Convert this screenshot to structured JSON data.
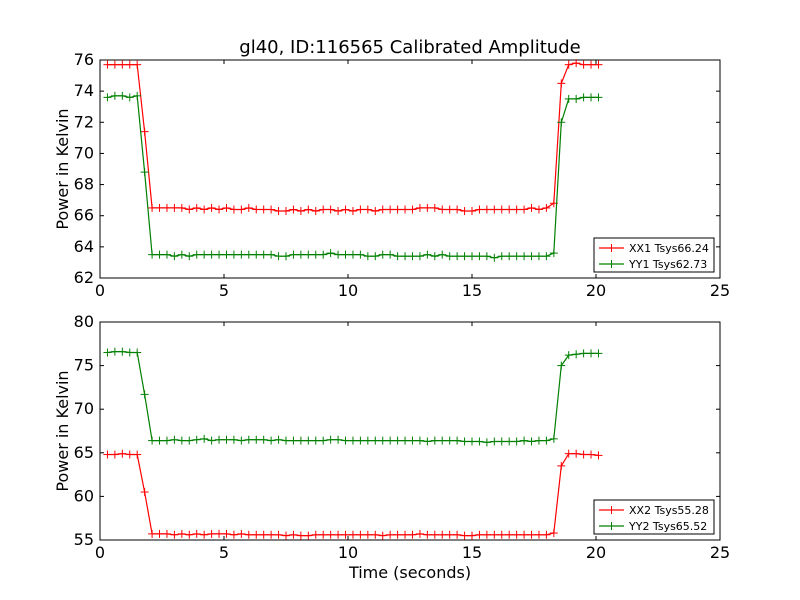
{
  "figure": {
    "title": "gl40, ID:116565 Calibrated Amplitude"
  },
  "chart_data": [
    {
      "type": "line",
      "title": "gl40, ID:116565 Calibrated Amplitude",
      "xlabel": "",
      "ylabel": "Power in Kelvin",
      "xlim": [
        0,
        25
      ],
      "ylim": [
        62,
        76
      ],
      "x_ticks": [
        0,
        5,
        10,
        15,
        20,
        25
      ],
      "y_ticks": [
        62,
        64,
        66,
        68,
        70,
        72,
        74,
        76
      ],
      "grid": false,
      "legend_position": "lower-right",
      "x": [
        0.3,
        0.6,
        0.9,
        1.2,
        1.5,
        1.8,
        2.1,
        2.4,
        2.7,
        3.0,
        3.3,
        3.6,
        3.9,
        4.2,
        4.5,
        4.8,
        5.1,
        5.4,
        5.7,
        6.0,
        6.3,
        6.6,
        6.9,
        7.2,
        7.5,
        7.8,
        8.1,
        8.4,
        8.7,
        9.0,
        9.3,
        9.6,
        9.9,
        10.2,
        10.5,
        10.8,
        11.1,
        11.4,
        11.7,
        12.0,
        12.3,
        12.6,
        12.9,
        13.2,
        13.5,
        13.8,
        14.1,
        14.4,
        14.7,
        15.0,
        15.3,
        15.6,
        15.9,
        16.2,
        16.5,
        16.8,
        17.1,
        17.4,
        17.7,
        18.0,
        18.3,
        18.6,
        18.9,
        19.2,
        19.5,
        19.8,
        20.1
      ],
      "series": [
        {
          "name": "XX1 Tsys66.24",
          "color": "#ff0000",
          "values": [
            75.7,
            75.7,
            75.7,
            75.7,
            75.7,
            71.4,
            66.5,
            66.5,
            66.5,
            66.5,
            66.5,
            66.4,
            66.5,
            66.4,
            66.5,
            66.4,
            66.5,
            66.4,
            66.4,
            66.5,
            66.4,
            66.4,
            66.4,
            66.3,
            66.3,
            66.4,
            66.3,
            66.4,
            66.3,
            66.4,
            66.4,
            66.3,
            66.4,
            66.3,
            66.4,
            66.4,
            66.3,
            66.4,
            66.4,
            66.4,
            66.4,
            66.4,
            66.5,
            66.5,
            66.5,
            66.4,
            66.4,
            66.4,
            66.3,
            66.3,
            66.4,
            66.4,
            66.4,
            66.4,
            66.4,
            66.4,
            66.4,
            66.5,
            66.4,
            66.5,
            66.8,
            74.5,
            75.7,
            75.8,
            75.7,
            75.7,
            75.7
          ]
        },
        {
          "name": "YY1 Tsys62.73",
          "color": "#008000",
          "values": [
            73.6,
            73.7,
            73.7,
            73.6,
            73.7,
            68.8,
            63.5,
            63.5,
            63.5,
            63.4,
            63.5,
            63.4,
            63.5,
            63.5,
            63.5,
            63.5,
            63.5,
            63.5,
            63.5,
            63.5,
            63.5,
            63.5,
            63.5,
            63.4,
            63.4,
            63.5,
            63.5,
            63.5,
            63.5,
            63.5,
            63.6,
            63.5,
            63.5,
            63.5,
            63.5,
            63.4,
            63.4,
            63.5,
            63.5,
            63.4,
            63.4,
            63.4,
            63.4,
            63.5,
            63.4,
            63.5,
            63.4,
            63.4,
            63.4,
            63.4,
            63.4,
            63.4,
            63.3,
            63.4,
            63.4,
            63.4,
            63.4,
            63.4,
            63.4,
            63.4,
            63.6,
            72.0,
            73.5,
            73.5,
            73.6,
            73.6,
            73.6
          ]
        }
      ]
    },
    {
      "type": "line",
      "title": "",
      "xlabel": "Time (seconds)",
      "ylabel": "Power in Kelvin",
      "xlim": [
        0,
        25
      ],
      "ylim": [
        55,
        80
      ],
      "x_ticks": [
        0,
        5,
        10,
        15,
        20,
        25
      ],
      "y_ticks": [
        55,
        60,
        65,
        70,
        75,
        80
      ],
      "grid": false,
      "legend_position": "lower-right",
      "x": [
        0.3,
        0.6,
        0.9,
        1.2,
        1.5,
        1.8,
        2.1,
        2.4,
        2.7,
        3.0,
        3.3,
        3.6,
        3.9,
        4.2,
        4.5,
        4.8,
        5.1,
        5.4,
        5.7,
        6.0,
        6.3,
        6.6,
        6.9,
        7.2,
        7.5,
        7.8,
        8.1,
        8.4,
        8.7,
        9.0,
        9.3,
        9.6,
        9.9,
        10.2,
        10.5,
        10.8,
        11.1,
        11.4,
        11.7,
        12.0,
        12.3,
        12.6,
        12.9,
        13.2,
        13.5,
        13.8,
        14.1,
        14.4,
        14.7,
        15.0,
        15.3,
        15.6,
        15.9,
        16.2,
        16.5,
        16.8,
        17.1,
        17.4,
        17.7,
        18.0,
        18.3,
        18.6,
        18.9,
        19.2,
        19.5,
        19.8,
        20.1
      ],
      "series": [
        {
          "name": "XX2 Tsys55.28",
          "color": "#ff0000",
          "values": [
            64.8,
            64.8,
            64.9,
            64.8,
            64.8,
            60.5,
            55.7,
            55.7,
            55.7,
            55.6,
            55.7,
            55.6,
            55.7,
            55.6,
            55.7,
            55.7,
            55.7,
            55.6,
            55.7,
            55.6,
            55.6,
            55.6,
            55.6,
            55.6,
            55.5,
            55.6,
            55.5,
            55.5,
            55.6,
            55.6,
            55.6,
            55.6,
            55.6,
            55.6,
            55.6,
            55.6,
            55.6,
            55.5,
            55.6,
            55.6,
            55.6,
            55.6,
            55.7,
            55.6,
            55.6,
            55.6,
            55.6,
            55.6,
            55.5,
            55.5,
            55.6,
            55.6,
            55.6,
            55.6,
            55.6,
            55.6,
            55.6,
            55.6,
            55.6,
            55.6,
            55.8,
            63.5,
            64.9,
            64.9,
            64.8,
            64.8,
            64.7
          ]
        },
        {
          "name": "YY2 Tsys65.52",
          "color": "#008000",
          "values": [
            76.5,
            76.6,
            76.6,
            76.5,
            76.5,
            71.7,
            66.4,
            66.4,
            66.4,
            66.5,
            66.4,
            66.4,
            66.5,
            66.6,
            66.4,
            66.5,
            66.5,
            66.5,
            66.4,
            66.5,
            66.5,
            66.5,
            66.4,
            66.5,
            66.4,
            66.4,
            66.4,
            66.4,
            66.4,
            66.4,
            66.5,
            66.5,
            66.4,
            66.4,
            66.4,
            66.4,
            66.4,
            66.4,
            66.4,
            66.4,
            66.4,
            66.4,
            66.4,
            66.3,
            66.4,
            66.4,
            66.4,
            66.4,
            66.3,
            66.3,
            66.3,
            66.2,
            66.3,
            66.3,
            66.3,
            66.3,
            66.4,
            66.3,
            66.4,
            66.4,
            66.6,
            75.0,
            76.2,
            76.3,
            76.4,
            76.4,
            76.4
          ]
        }
      ]
    }
  ]
}
